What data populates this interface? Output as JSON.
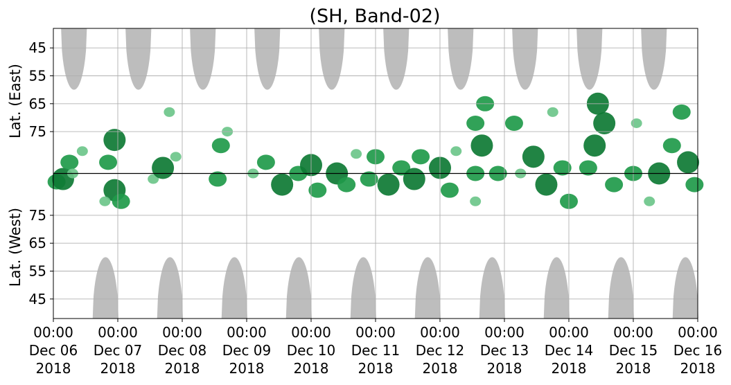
{
  "chart_data": {
    "type": "heatmap",
    "title": "(SH, Band-02)",
    "ylabel_top": "Lat. (East)",
    "ylabel_bottom": "Lat. (West)",
    "x_tick_labels": [
      [
        "00:00",
        "Dec 06",
        "2018"
      ],
      [
        "00:00",
        "Dec 07",
        "2018"
      ],
      [
        "00:00",
        "Dec 08",
        "2018"
      ],
      [
        "00:00",
        "Dec 09",
        "2018"
      ],
      [
        "00:00",
        "Dec 10",
        "2018"
      ],
      [
        "00:00",
        "Dec 11",
        "2018"
      ],
      [
        "00:00",
        "Dec 12",
        "2018"
      ],
      [
        "00:00",
        "Dec 13",
        "2018"
      ],
      [
        "00:00",
        "Dec 14",
        "2018"
      ],
      [
        "00:00",
        "Dec 15",
        "2018"
      ],
      [
        "00:00",
        "Dec 16",
        "2018"
      ]
    ],
    "x_range": [
      "2018-12-06 00:00",
      "2018-12-16 00:00"
    ],
    "y_ticks_east": [
      45,
      55,
      65,
      75
    ],
    "y_ticks_west": [
      75,
      65,
      55,
      45
    ],
    "y_range": [
      38,
      142
    ],
    "grid": true,
    "colors": {
      "night_shading": "#bdbdbd",
      "strong": "#0e7a34",
      "medium": "#1f9a4a",
      "weak": "#6cc58a"
    },
    "night_regions": [
      {
        "hemisphere": "east",
        "center_day": 0.32,
        "half_width_days": 0.2,
        "edge_lat": 60
      },
      {
        "hemisphere": "east",
        "center_day": 1.32,
        "half_width_days": 0.2,
        "edge_lat": 60
      },
      {
        "hemisphere": "east",
        "center_day": 2.32,
        "half_width_days": 0.2,
        "edge_lat": 60
      },
      {
        "hemisphere": "east",
        "center_day": 3.32,
        "half_width_days": 0.2,
        "edge_lat": 60
      },
      {
        "hemisphere": "east",
        "center_day": 4.32,
        "half_width_days": 0.2,
        "edge_lat": 60
      },
      {
        "hemisphere": "east",
        "center_day": 5.32,
        "half_width_days": 0.2,
        "edge_lat": 60
      },
      {
        "hemisphere": "east",
        "center_day": 6.32,
        "half_width_days": 0.2,
        "edge_lat": 60
      },
      {
        "hemisphere": "east",
        "center_day": 7.32,
        "half_width_days": 0.2,
        "edge_lat": 60
      },
      {
        "hemisphere": "east",
        "center_day": 8.32,
        "half_width_days": 0.2,
        "edge_lat": 60
      },
      {
        "hemisphere": "east",
        "center_day": 9.32,
        "half_width_days": 0.2,
        "edge_lat": 60
      },
      {
        "hemisphere": "west",
        "center_day": 0.81,
        "half_width_days": 0.2,
        "edge_lat": 60
      },
      {
        "hemisphere": "west",
        "center_day": 1.81,
        "half_width_days": 0.2,
        "edge_lat": 60
      },
      {
        "hemisphere": "west",
        "center_day": 2.81,
        "half_width_days": 0.2,
        "edge_lat": 60
      },
      {
        "hemisphere": "west",
        "center_day": 3.81,
        "half_width_days": 0.2,
        "edge_lat": 60
      },
      {
        "hemisphere": "west",
        "center_day": 4.81,
        "half_width_days": 0.2,
        "edge_lat": 60
      },
      {
        "hemisphere": "west",
        "center_day": 5.81,
        "half_width_days": 0.2,
        "edge_lat": 60
      },
      {
        "hemisphere": "west",
        "center_day": 6.81,
        "half_width_days": 0.2,
        "edge_lat": 60
      },
      {
        "hemisphere": "west",
        "center_day": 7.81,
        "half_width_days": 0.2,
        "edge_lat": 60
      },
      {
        "hemisphere": "west",
        "center_day": 8.81,
        "half_width_days": 0.2,
        "edge_lat": 60
      },
      {
        "hemisphere": "west",
        "center_day": 9.81,
        "half_width_days": 0.2,
        "edge_lat": 60
      }
    ],
    "activity_clusters": [
      {
        "day": 0.05,
        "lat": 93.0,
        "level": "medium"
      },
      {
        "day": 0.15,
        "lat": 92.0,
        "level": "strong"
      },
      {
        "day": 0.25,
        "lat": 86.0,
        "level": "medium"
      },
      {
        "day": 0.3,
        "lat": 90.0,
        "level": "weak"
      },
      {
        "day": 0.45,
        "lat": 82.0,
        "level": "weak"
      },
      {
        "day": 0.85,
        "lat": 86.0,
        "level": "medium"
      },
      {
        "day": 0.95,
        "lat": 78.0,
        "level": "strong"
      },
      {
        "day": 0.95,
        "lat": 96.0,
        "level": "strong"
      },
      {
        "day": 1.05,
        "lat": 100.0,
        "level": "medium"
      },
      {
        "day": 0.8,
        "lat": 100.0,
        "level": "weak"
      },
      {
        "day": 1.55,
        "lat": 92.0,
        "level": "weak"
      },
      {
        "day": 1.7,
        "lat": 88.0,
        "level": "strong"
      },
      {
        "day": 1.9,
        "lat": 84.0,
        "level": "weak"
      },
      {
        "day": 1.8,
        "lat": 68.0,
        "level": "weak"
      },
      {
        "day": 2.55,
        "lat": 92.0,
        "level": "medium"
      },
      {
        "day": 2.6,
        "lat": 80.0,
        "level": "medium"
      },
      {
        "day": 2.7,
        "lat": 75.0,
        "level": "weak"
      },
      {
        "day": 3.1,
        "lat": 90.0,
        "level": "weak"
      },
      {
        "day": 3.3,
        "lat": 86.0,
        "level": "medium"
      },
      {
        "day": 3.55,
        "lat": 94.0,
        "level": "strong"
      },
      {
        "day": 3.8,
        "lat": 90.0,
        "level": "medium"
      },
      {
        "day": 4.0,
        "lat": 87.0,
        "level": "strong"
      },
      {
        "day": 4.1,
        "lat": 96.0,
        "level": "medium"
      },
      {
        "day": 4.4,
        "lat": 90.0,
        "level": "strong"
      },
      {
        "day": 4.55,
        "lat": 94.0,
        "level": "medium"
      },
      {
        "day": 4.7,
        "lat": 83.0,
        "level": "weak"
      },
      {
        "day": 4.9,
        "lat": 92.0,
        "level": "medium"
      },
      {
        "day": 5.0,
        "lat": 84.0,
        "level": "medium"
      },
      {
        "day": 5.2,
        "lat": 94.0,
        "level": "strong"
      },
      {
        "day": 5.4,
        "lat": 88.0,
        "level": "medium"
      },
      {
        "day": 5.6,
        "lat": 92.0,
        "level": "strong"
      },
      {
        "day": 5.7,
        "lat": 84.0,
        "level": "medium"
      },
      {
        "day": 6.0,
        "lat": 88.0,
        "level": "strong"
      },
      {
        "day": 6.15,
        "lat": 96.0,
        "level": "medium"
      },
      {
        "day": 6.25,
        "lat": 82.0,
        "level": "weak"
      },
      {
        "day": 6.55,
        "lat": 72.0,
        "level": "medium"
      },
      {
        "day": 6.55,
        "lat": 90.0,
        "level": "medium"
      },
      {
        "day": 6.65,
        "lat": 80.0,
        "level": "strong"
      },
      {
        "day": 6.7,
        "lat": 65.0,
        "level": "medium"
      },
      {
        "day": 6.55,
        "lat": 100.0,
        "level": "weak"
      },
      {
        "day": 6.9,
        "lat": 90.0,
        "level": "medium"
      },
      {
        "day": 7.15,
        "lat": 72.0,
        "level": "medium"
      },
      {
        "day": 7.25,
        "lat": 90.0,
        "level": "weak"
      },
      {
        "day": 7.45,
        "lat": 84.0,
        "level": "strong"
      },
      {
        "day": 7.75,
        "lat": 68.0,
        "level": "weak"
      },
      {
        "day": 7.65,
        "lat": 94.0,
        "level": "strong"
      },
      {
        "day": 7.9,
        "lat": 88.0,
        "level": "medium"
      },
      {
        "day": 8.0,
        "lat": 100.0,
        "level": "medium"
      },
      {
        "day": 8.4,
        "lat": 80.0,
        "level": "strong"
      },
      {
        "day": 8.45,
        "lat": 65.0,
        "level": "strong"
      },
      {
        "day": 8.55,
        "lat": 72.0,
        "level": "strong"
      },
      {
        "day": 8.3,
        "lat": 88.0,
        "level": "medium"
      },
      {
        "day": 8.7,
        "lat": 94.0,
        "level": "medium"
      },
      {
        "day": 9.05,
        "lat": 72.0,
        "level": "weak"
      },
      {
        "day": 9.0,
        "lat": 90.0,
        "level": "medium"
      },
      {
        "day": 9.25,
        "lat": 100.0,
        "level": "weak"
      },
      {
        "day": 9.4,
        "lat": 90.0,
        "level": "strong"
      },
      {
        "day": 9.6,
        "lat": 80.0,
        "level": "medium"
      },
      {
        "day": 9.75,
        "lat": 68.0,
        "level": "medium"
      },
      {
        "day": 9.85,
        "lat": 86.0,
        "level": "strong"
      },
      {
        "day": 9.95,
        "lat": 94.0,
        "level": "medium"
      }
    ]
  }
}
